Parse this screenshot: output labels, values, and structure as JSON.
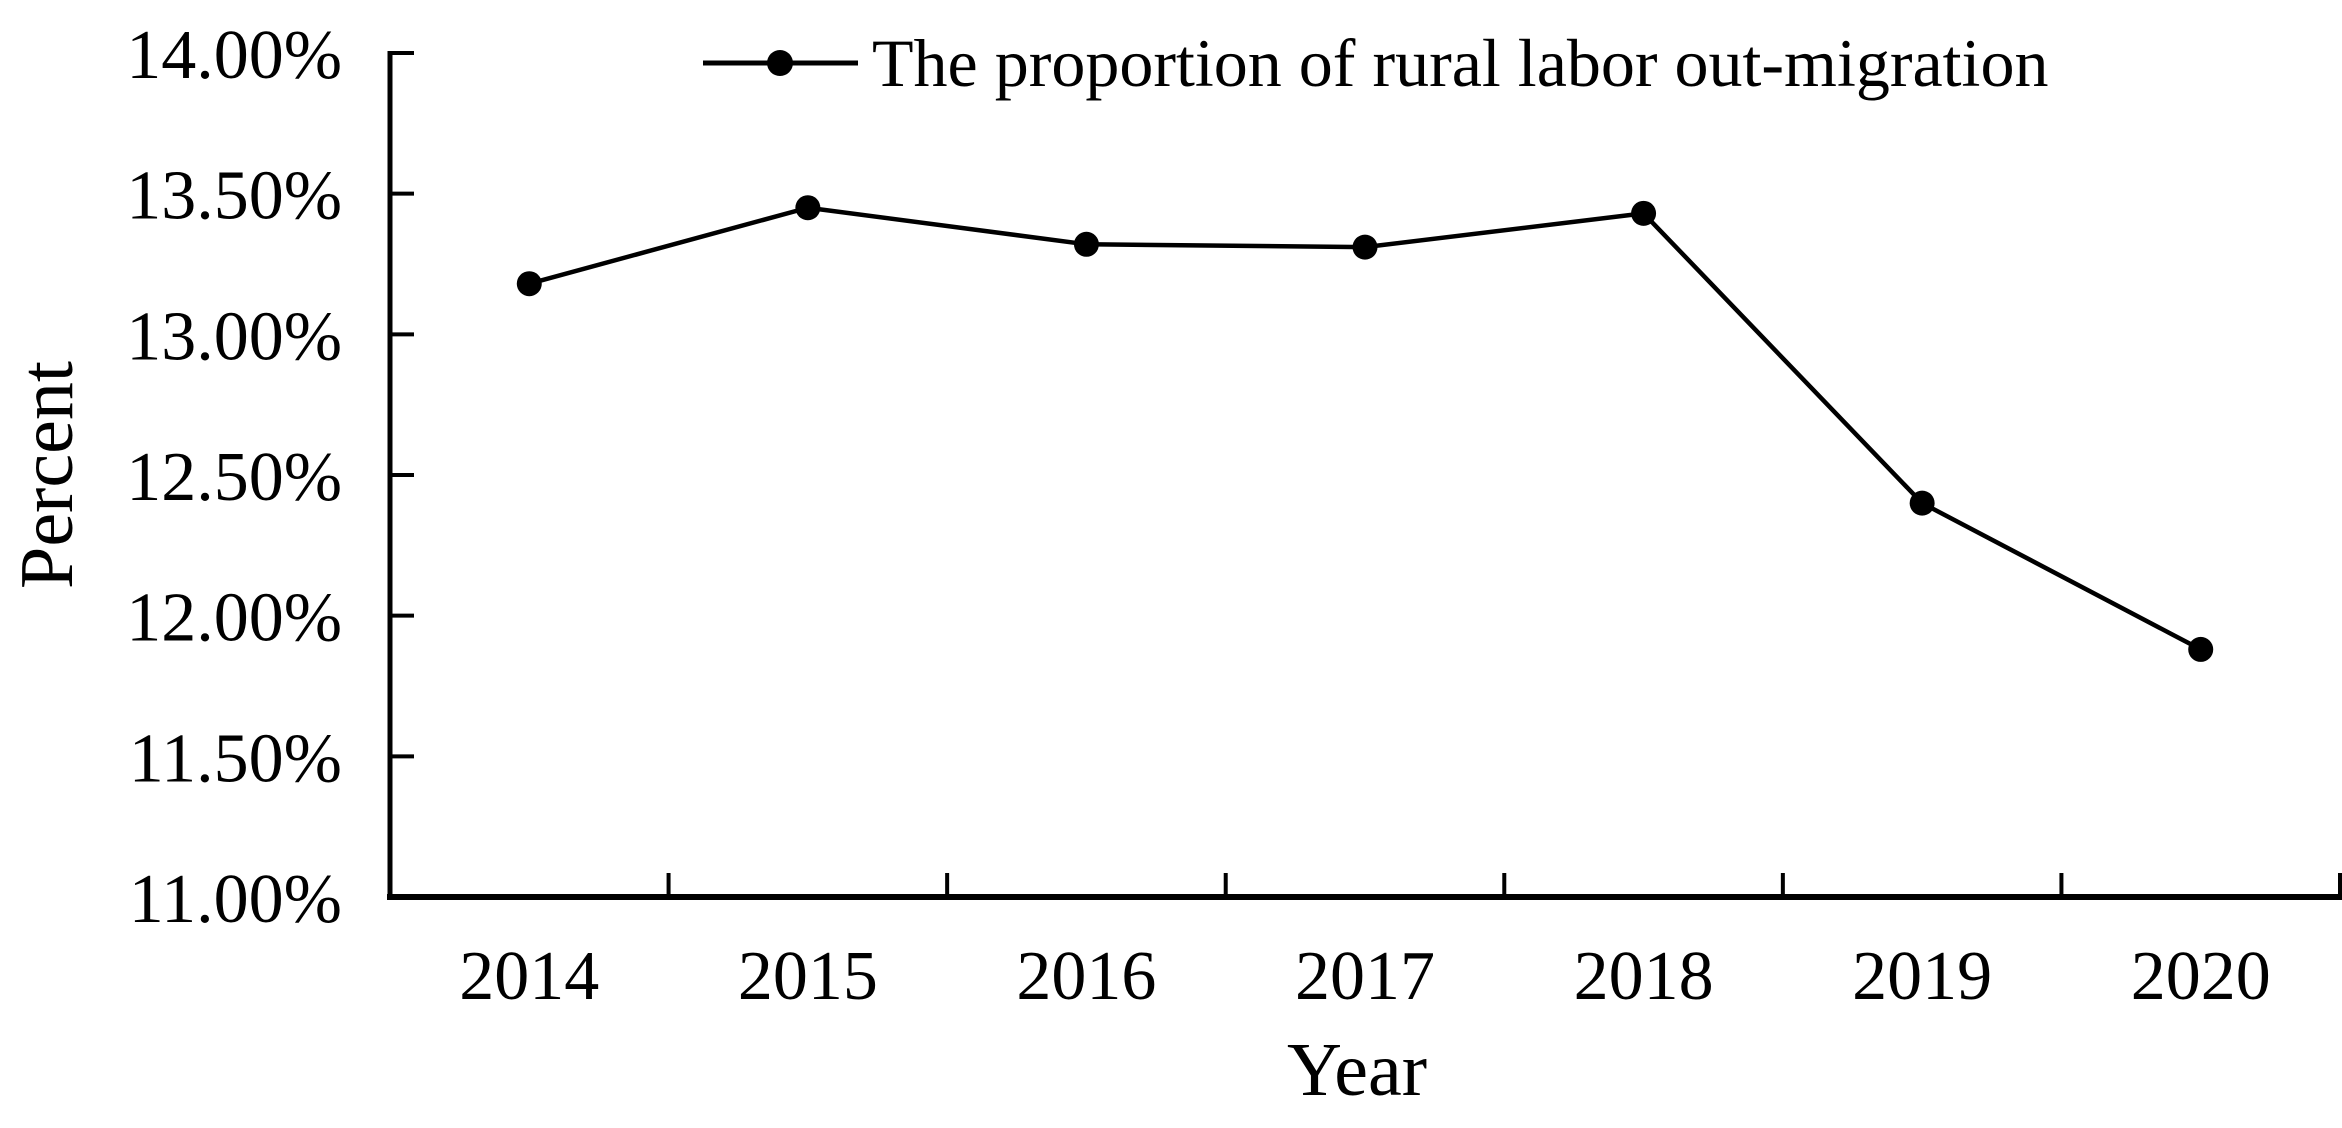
{
  "page": {
    "background_color": "#ffffff",
    "text_color": "#000000"
  },
  "chart_data": {
    "type": "line",
    "title": "",
    "xlabel": "Year",
    "ylabel": "Percent",
    "categories": [
      "2014",
      "2015",
      "2016",
      "2017",
      "2018",
      "2019",
      "2020"
    ],
    "series": [
      {
        "name": "The proportion of rural labor out-migration",
        "values": [
          13.18,
          13.45,
          13.32,
          13.31,
          13.43,
          12.4,
          11.88
        ],
        "color": "#000000",
        "marker": "filled-circle",
        "line_style": "solid"
      }
    ],
    "ylim": [
      11.0,
      14.0
    ],
    "y_tick_step": 0.5,
    "y_tick_labels": [
      "11.00%",
      "11.50%",
      "12.00%",
      "12.50%",
      "13.00%",
      "13.50%",
      "14.00%"
    ],
    "x_tick_position": "category-boundaries",
    "grid": false,
    "legend": {
      "position": "top-center",
      "items": [
        {
          "label": "The proportion of rural labor out-migration",
          "marker": "filled-circle",
          "color": "#000000"
        }
      ]
    }
  }
}
